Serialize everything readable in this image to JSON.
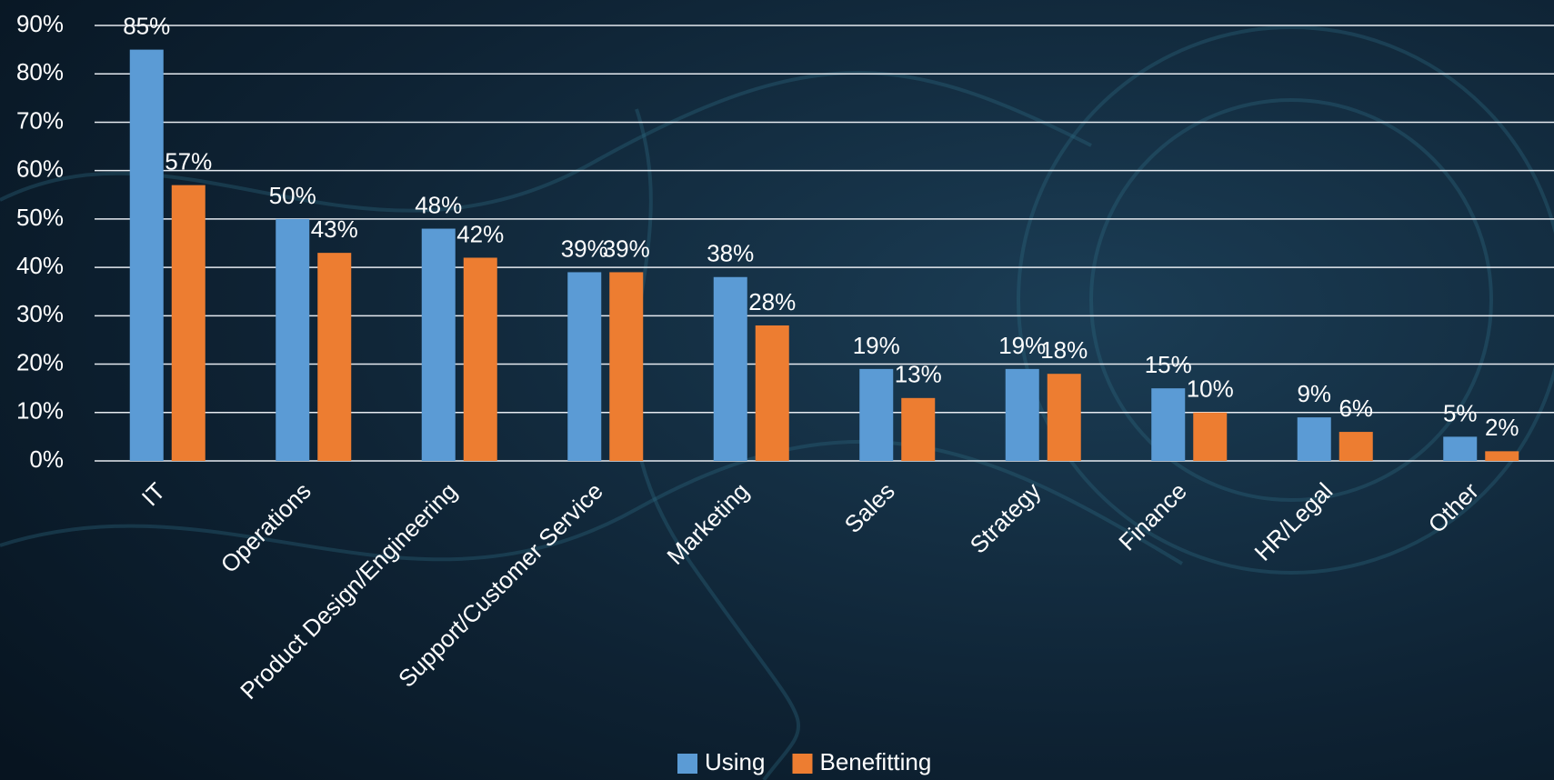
{
  "chart_data": {
    "type": "bar",
    "categories": [
      "IT",
      "Operations",
      "Product Design/Engineering",
      "Support/Customer Service",
      "Marketing",
      "Sales",
      "Strategy",
      "Finance",
      "HR/Legal",
      "Other"
    ],
    "series": [
      {
        "name": "Using",
        "color": "#5b9bd5",
        "values": [
          85,
          50,
          48,
          39,
          38,
          19,
          19,
          15,
          9,
          5
        ],
        "value_labels": [
          "85%",
          "50%",
          "48%",
          "39%",
          "38%",
          "19%",
          "19%",
          "15%",
          "9%",
          "5%"
        ]
      },
      {
        "name": "Benefitting",
        "color": "#ed7d31",
        "values": [
          57,
          43,
          42,
          39,
          28,
          13,
          18,
          10,
          6,
          2
        ],
        "value_labels": [
          "57%",
          "43%",
          "42%",
          "39%",
          "28%",
          "13%",
          "18%",
          "10%",
          "6%",
          "2%"
        ]
      }
    ],
    "ylim": [
      0,
      90
    ],
    "yticks": [
      {
        "value": 0,
        "label": "0%"
      },
      {
        "value": 10,
        "label": "10%"
      },
      {
        "value": 20,
        "label": "20%"
      },
      {
        "value": 30,
        "label": "30%"
      },
      {
        "value": 40,
        "label": "40%"
      },
      {
        "value": 50,
        "label": "50%"
      },
      {
        "value": 60,
        "label": "60%"
      },
      {
        "value": 70,
        "label": "70%"
      },
      {
        "value": 80,
        "label": "80%"
      },
      {
        "value": 90,
        "label": "90%"
      }
    ],
    "grid": true,
    "legend": "bottom"
  }
}
